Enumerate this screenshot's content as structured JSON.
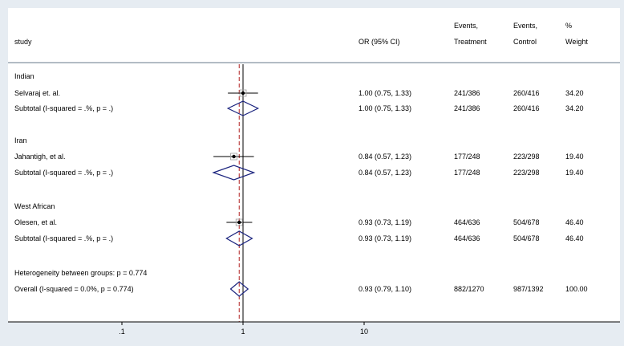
{
  "chart_data": {
    "type": "forest",
    "columns": {
      "study": "study",
      "or": "OR (95% CI)",
      "events_treatment_line1": "Events,",
      "events_treatment_line2": "Treatment",
      "events_control_line1": "Events,",
      "events_control_line2": "Control",
      "weight_line1": "%",
      "weight_line2": "Weight"
    },
    "x_axis": {
      "scale": "log",
      "ticks": [
        0.1,
        1,
        10
      ],
      "tick_labels": [
        ".1",
        "1",
        "10"
      ],
      "xlim": [
        0.1,
        10
      ]
    },
    "null_line": 1,
    "overall_line": 0.93,
    "rows": [
      {
        "kind": "group",
        "label": "Indian"
      },
      {
        "kind": "study",
        "label": "Selvaraj et. al.",
        "or": 1.0,
        "lo": 0.75,
        "hi": 1.33,
        "ci_text": "1.00 (0.75, 1.33)",
        "ev_t": "241/386",
        "ev_c": "260/416",
        "weight": "34.20"
      },
      {
        "kind": "subtotal",
        "label": "Subtotal  (I-squared = .%, p = .)",
        "or": 1.0,
        "lo": 0.75,
        "hi": 1.33,
        "ci_text": "1.00 (0.75, 1.33)",
        "ev_t": "241/386",
        "ev_c": "260/416",
        "weight": "34.20"
      },
      {
        "kind": "spacer"
      },
      {
        "kind": "group",
        "label": "Iran"
      },
      {
        "kind": "study",
        "label": "Jahantigh, et al.",
        "or": 0.84,
        "lo": 0.57,
        "hi": 1.23,
        "ci_text": "0.84 (0.57, 1.23)",
        "ev_t": "177/248",
        "ev_c": "223/298",
        "weight": "19.40"
      },
      {
        "kind": "subtotal",
        "label": "Subtotal  (I-squared = .%, p = .)",
        "or": 0.84,
        "lo": 0.57,
        "hi": 1.23,
        "ci_text": "0.84 (0.57, 1.23)",
        "ev_t": "177/248",
        "ev_c": "223/298",
        "weight": "19.40"
      },
      {
        "kind": "spacer"
      },
      {
        "kind": "group",
        "label": "West African"
      },
      {
        "kind": "study",
        "label": "Olesen, et al.",
        "or": 0.93,
        "lo": 0.73,
        "hi": 1.19,
        "ci_text": "0.93 (0.73, 1.19)",
        "ev_t": "464/636",
        "ev_c": "504/678",
        "weight": "46.40"
      },
      {
        "kind": "subtotal",
        "label": "Subtotal  (I-squared = .%, p = .)",
        "or": 0.93,
        "lo": 0.73,
        "hi": 1.19,
        "ci_text": "0.93 (0.73, 1.19)",
        "ev_t": "464/636",
        "ev_c": "504/678",
        "weight": "46.40"
      },
      {
        "kind": "spacer"
      },
      {
        "kind": "note",
        "label": "Heterogeneity between groups: p = 0.774"
      },
      {
        "kind": "overall",
        "label": "Overall  (I-squared = 0.0%, p = 0.774)",
        "or": 0.93,
        "lo": 0.79,
        "hi": 1.1,
        "ci_text": "0.93 (0.79, 1.10)",
        "ev_t": "882/1270",
        "ev_c": "987/1392",
        "weight": "100.00"
      }
    ]
  },
  "colors": {
    "background": "#e6ecf2",
    "plot_area": "#ffffff",
    "diamond": "#1a237e",
    "null_line": "#000000",
    "overall_line": "#b22222",
    "divider": "#9aa6b2"
  }
}
